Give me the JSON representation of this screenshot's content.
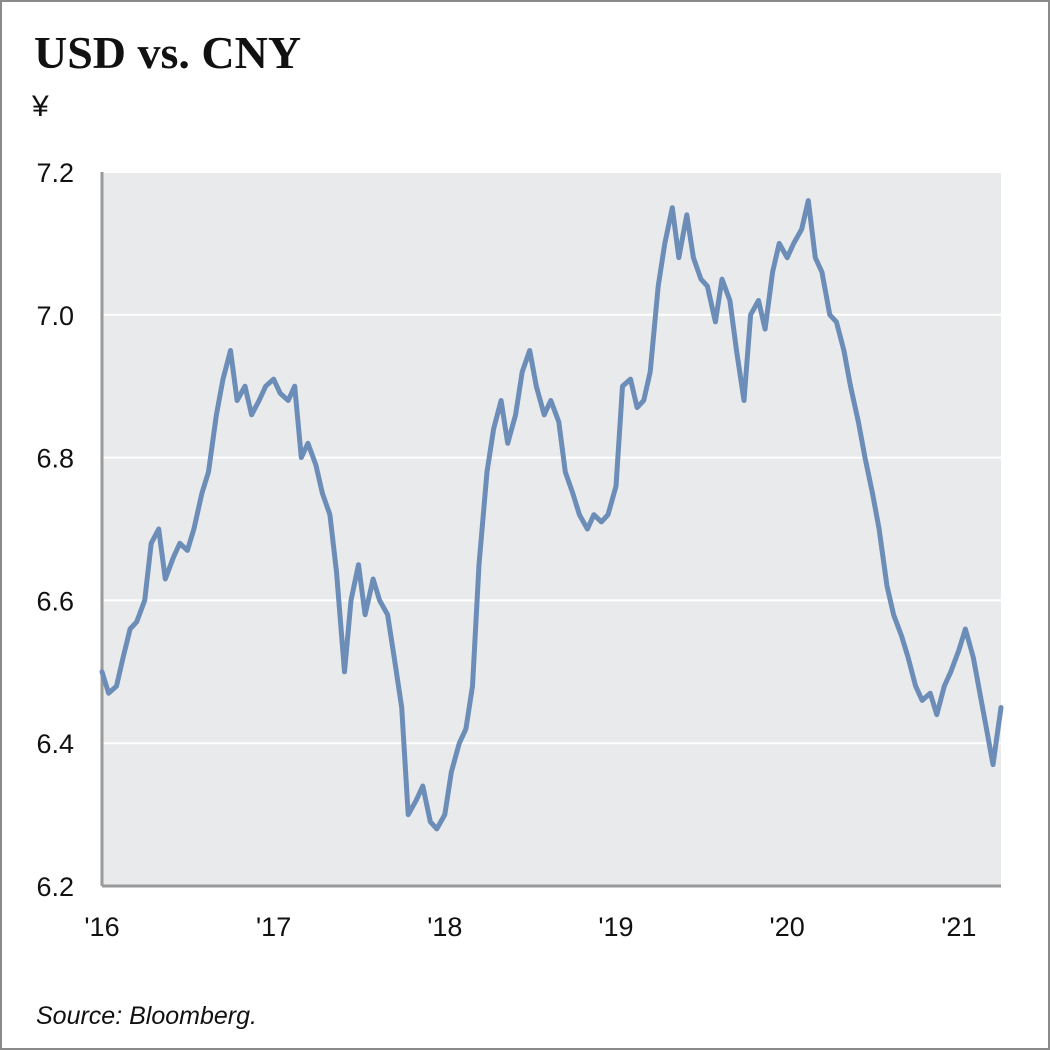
{
  "header": {
    "title": "USD vs. CNY",
    "unit": "¥"
  },
  "footer": {
    "source": "Source: Bloomberg."
  },
  "colors": {
    "plot_background": "#e9eaeb",
    "gridline": "#ffffff",
    "series_line": "#6c8db8",
    "axis": "#9a9a9a"
  },
  "chart_data": {
    "type": "line",
    "title": "USD vs. CNY",
    "ylabel": "¥",
    "xlabel": "",
    "ylim": [
      6.2,
      7.2
    ],
    "xlim": [
      "2016-01-01",
      "2021-04-01"
    ],
    "grid": true,
    "y_ticks": [
      "6.2",
      "6.4",
      "6.6",
      "6.8",
      "7.0",
      "7.2"
    ],
    "x_ticks": [
      {
        "date": "2016-01-01",
        "label": "'16"
      },
      {
        "date": "2017-01-01",
        "label": "'17"
      },
      {
        "date": "2018-01-01",
        "label": "'18"
      },
      {
        "date": "2019-01-01",
        "label": "'19"
      },
      {
        "date": "2020-01-01",
        "label": "'20"
      },
      {
        "date": "2021-01-01",
        "label": "'21"
      }
    ],
    "series": [
      {
        "x": [
          "2016-01-01",
          "2016-01-15",
          "2016-02-01",
          "2016-02-15",
          "2016-03-01",
          "2016-03-15",
          "2016-04-01",
          "2016-04-15",
          "2016-05-01",
          "2016-05-15",
          "2016-06-01",
          "2016-06-15",
          "2016-07-01",
          "2016-07-15",
          "2016-08-01",
          "2016-08-15",
          "2016-09-01",
          "2016-09-15",
          "2016-10-01",
          "2016-10-15",
          "2016-11-01",
          "2016-11-15",
          "2016-12-01",
          "2016-12-15",
          "2017-01-01",
          "2017-01-15",
          "2017-02-01",
          "2017-02-15",
          "2017-03-01",
          "2017-03-15",
          "2017-04-01",
          "2017-04-15",
          "2017-05-01",
          "2017-05-15",
          "2017-06-01",
          "2017-06-15",
          "2017-07-01",
          "2017-07-15",
          "2017-08-01",
          "2017-08-15",
          "2017-09-01",
          "2017-09-15",
          "2017-10-01",
          "2017-10-15",
          "2017-11-01",
          "2017-11-15",
          "2017-12-01",
          "2017-12-15",
          "2018-01-01",
          "2018-01-15",
          "2018-02-01",
          "2018-02-15",
          "2018-03-01",
          "2018-03-15",
          "2018-04-01",
          "2018-04-15",
          "2018-05-01",
          "2018-05-15",
          "2018-06-01",
          "2018-06-15",
          "2018-07-01",
          "2018-07-15",
          "2018-08-01",
          "2018-08-15",
          "2018-09-01",
          "2018-09-15",
          "2018-10-01",
          "2018-10-15",
          "2018-11-01",
          "2018-11-15",
          "2018-12-01",
          "2018-12-15",
          "2019-01-01",
          "2019-01-15",
          "2019-02-01",
          "2019-02-15",
          "2019-03-01",
          "2019-03-15",
          "2019-04-01",
          "2019-04-15",
          "2019-05-01",
          "2019-05-15",
          "2019-06-01",
          "2019-06-15",
          "2019-07-01",
          "2019-07-15",
          "2019-08-01",
          "2019-08-15",
          "2019-09-01",
          "2019-09-15",
          "2019-10-01",
          "2019-10-15",
          "2019-11-01",
          "2019-11-15",
          "2019-12-01",
          "2019-12-15",
          "2020-01-01",
          "2020-01-15",
          "2020-02-01",
          "2020-02-15",
          "2020-03-01",
          "2020-03-15",
          "2020-04-01",
          "2020-04-15",
          "2020-05-01",
          "2020-05-15",
          "2020-06-01",
          "2020-06-15",
          "2020-07-01",
          "2020-07-15",
          "2020-08-01",
          "2020-08-15",
          "2020-09-01",
          "2020-09-15",
          "2020-10-01",
          "2020-10-15",
          "2020-11-01",
          "2020-11-15",
          "2020-12-01",
          "2020-12-15",
          "2021-01-01",
          "2021-01-15",
          "2021-02-01",
          "2021-02-15",
          "2021-03-01",
          "2021-03-15",
          "2021-04-01"
        ],
        "y": [
          6.5,
          6.47,
          6.48,
          6.52,
          6.56,
          6.57,
          6.6,
          6.68,
          6.7,
          6.63,
          6.66,
          6.68,
          6.67,
          6.7,
          6.75,
          6.78,
          6.86,
          6.91,
          6.95,
          6.88,
          6.9,
          6.86,
          6.88,
          6.9,
          6.91,
          6.89,
          6.88,
          6.9,
          6.8,
          6.82,
          6.79,
          6.75,
          6.72,
          6.64,
          6.5,
          6.6,
          6.65,
          6.58,
          6.63,
          6.6,
          6.58,
          6.52,
          6.45,
          6.3,
          6.32,
          6.34,
          6.29,
          6.28,
          6.3,
          6.36,
          6.4,
          6.42,
          6.48,
          6.65,
          6.78,
          6.84,
          6.88,
          6.82,
          6.86,
          6.92,
          6.95,
          6.9,
          6.86,
          6.88,
          6.85,
          6.78,
          6.75,
          6.72,
          6.7,
          6.72,
          6.71,
          6.72,
          6.76,
          6.9,
          6.91,
          6.87,
          6.88,
          6.92,
          7.04,
          7.1,
          7.15,
          7.08,
          7.14,
          7.08,
          7.05,
          7.04,
          6.99,
          7.05,
          7.02,
          6.95,
          6.88,
          7.0,
          7.02,
          6.98,
          7.06,
          7.1,
          7.08,
          7.1,
          7.12,
          7.16,
          7.08,
          7.06,
          7.0,
          6.99,
          6.95,
          6.9,
          6.85,
          6.8,
          6.75,
          6.7,
          6.62,
          6.58,
          6.55,
          6.52,
          6.48,
          6.46,
          6.47,
          6.44,
          6.48,
          6.5,
          6.53,
          6.56,
          6.52,
          6.47,
          6.42,
          6.37,
          6.45
        ]
      }
    ]
  }
}
